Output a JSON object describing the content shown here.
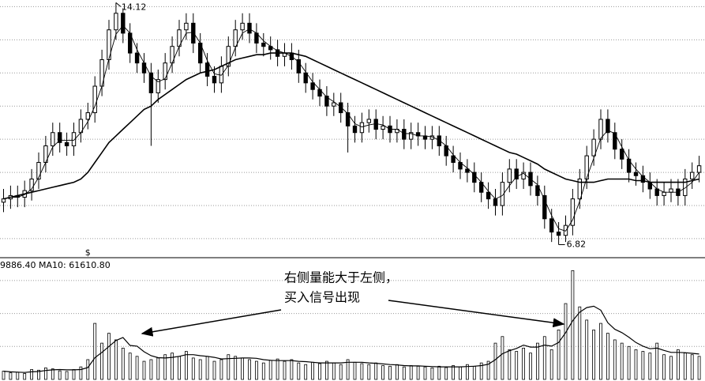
{
  "chart_data": [
    {
      "type": "candlestick",
      "color": "#000000",
      "up_fill": "#ffffff",
      "grid": true,
      "grid_color": "#9a9a9a",
      "ylim": [
        6.45,
        14.2
      ],
      "yticks": [
        7,
        8,
        9,
        10,
        11,
        12,
        13,
        14
      ],
      "high_label_index": 16,
      "low_label_index": 79,
      "event_marker": "$",
      "event_index": 12,
      "open": [
        8.1,
        8.2,
        8.3,
        8.25,
        8.45,
        8.8,
        9.3,
        9.8,
        10.2,
        9.9,
        9.8,
        10.2,
        10.6,
        10.8,
        11.6,
        12.4,
        13.3,
        13.8,
        13.2,
        12.6,
        12.3,
        12.0,
        11.4,
        11.8,
        12.3,
        12.8,
        13.3,
        13.5,
        12.9,
        12.3,
        11.9,
        11.7,
        12.2,
        12.8,
        13.3,
        13.5,
        13.2,
        12.9,
        12.8,
        12.7,
        12.5,
        12.6,
        12.4,
        12.0,
        11.7,
        11.5,
        11.3,
        11.0,
        11.1,
        10.8,
        10.4,
        10.2,
        10.5,
        10.6,
        10.3,
        10.4,
        10.2,
        10.3,
        10.0,
        10.2,
        10.1,
        10.0,
        10.1,
        9.8,
        9.5,
        9.3,
        9.1,
        9.0,
        8.7,
        8.4,
        8.2,
        8.0,
        8.7,
        9.1,
        8.8,
        9.0,
        8.6,
        8.3,
        7.6,
        7.2,
        7.1,
        7.4,
        8.2,
        8.8,
        9.5,
        10.0,
        10.6,
        10.2,
        9.7,
        9.4,
        9.0,
        8.9,
        8.7,
        8.5,
        8.3,
        8.4,
        8.5,
        8.3,
        8.8,
        9.0
      ],
      "high": [
        8.5,
        8.6,
        8.6,
        8.75,
        9.1,
        9.6,
        10.1,
        10.5,
        10.5,
        10.2,
        10.5,
        10.9,
        11.1,
        11.9,
        12.7,
        13.6,
        14.12,
        13.95,
        13.5,
        12.9,
        12.6,
        12.3,
        12.1,
        12.6,
        13.1,
        13.6,
        13.8,
        13.8,
        13.2,
        12.6,
        12.2,
        12.5,
        13.1,
        13.6,
        13.8,
        13.8,
        13.5,
        13.2,
        13.1,
        13.0,
        12.9,
        12.9,
        12.7,
        12.3,
        12.0,
        11.8,
        11.6,
        11.4,
        11.4,
        11.1,
        10.7,
        10.8,
        10.9,
        10.9,
        10.7,
        10.7,
        10.6,
        10.6,
        10.5,
        10.5,
        10.4,
        10.4,
        10.4,
        10.1,
        9.8,
        9.6,
        9.4,
        9.3,
        9.0,
        8.7,
        8.5,
        9.0,
        9.4,
        9.4,
        9.3,
        9.3,
        8.9,
        8.6,
        7.9,
        7.5,
        7.7,
        8.5,
        9.1,
        9.8,
        10.3,
        10.9,
        10.9,
        10.5,
        10.0,
        9.7,
        9.3,
        9.2,
        9.0,
        8.8,
        8.7,
        8.8,
        8.8,
        9.1,
        9.3,
        9.5
      ],
      "low": [
        7.8,
        7.9,
        7.95,
        7.95,
        8.15,
        8.5,
        9.0,
        9.5,
        9.6,
        9.5,
        9.5,
        9.9,
        10.3,
        10.5,
        11.3,
        12.1,
        13.0,
        12.9,
        12.3,
        12.0,
        11.7,
        9.8,
        11.1,
        11.5,
        12.0,
        12.5,
        13.0,
        12.6,
        12.0,
        11.6,
        11.4,
        11.4,
        11.9,
        12.5,
        13.0,
        12.9,
        12.6,
        12.5,
        12.4,
        12.2,
        12.2,
        12.1,
        11.7,
        11.4,
        11.2,
        11.0,
        10.7,
        10.7,
        10.5,
        9.6,
        9.9,
        9.9,
        10.2,
        10.0,
        10.0,
        9.9,
        9.9,
        9.7,
        9.7,
        9.8,
        9.7,
        9.7,
        9.5,
        9.2,
        9.0,
        8.8,
        8.7,
        8.4,
        8.1,
        7.9,
        7.7,
        7.7,
        8.4,
        8.5,
        8.5,
        8.3,
        8.0,
        7.3,
        6.9,
        6.82,
        6.9,
        7.1,
        7.9,
        8.5,
        9.2,
        9.7,
        9.9,
        9.4,
        9.1,
        8.7,
        8.6,
        8.4,
        8.2,
        8.0,
        8.0,
        8.1,
        8.0,
        8.0,
        8.5,
        8.7
      ],
      "close": [
        8.2,
        8.3,
        8.25,
        8.45,
        8.8,
        9.3,
        9.8,
        10.2,
        9.9,
        9.8,
        10.2,
        10.6,
        10.8,
        11.6,
        12.4,
        13.3,
        13.8,
        13.2,
        12.6,
        12.3,
        12.0,
        11.4,
        11.8,
        12.3,
        12.8,
        13.3,
        13.5,
        12.9,
        12.3,
        11.9,
        11.7,
        12.2,
        12.8,
        13.3,
        13.5,
        13.2,
        12.9,
        12.8,
        12.7,
        12.5,
        12.6,
        12.4,
        12.0,
        11.7,
        11.5,
        11.3,
        11.0,
        11.1,
        10.8,
        10.4,
        10.2,
        10.5,
        10.6,
        10.3,
        10.4,
        10.2,
        10.3,
        10.0,
        10.2,
        10.1,
        10.0,
        10.1,
        9.8,
        9.5,
        9.3,
        9.1,
        9.0,
        8.7,
        8.4,
        8.2,
        8.0,
        8.7,
        9.1,
        8.8,
        9.0,
        8.6,
        8.3,
        7.6,
        7.2,
        7.1,
        7.4,
        8.2,
        8.8,
        9.5,
        10.0,
        10.6,
        10.2,
        9.7,
        9.4,
        9.0,
        8.9,
        8.7,
        8.5,
        8.3,
        8.4,
        8.5,
        8.3,
        8.8,
        9.0,
        9.2
      ],
      "ma_short": {
        "color": "#000000",
        "values": [
          8.2,
          8.25,
          8.25,
          8.33,
          8.5,
          8.85,
          9.3,
          9.77,
          9.97,
          9.97,
          9.97,
          10.2,
          10.53,
          11.0,
          11.6,
          12.43,
          13.17,
          13.43,
          13.2,
          12.7,
          12.3,
          11.9,
          11.73,
          11.83,
          12.3,
          12.8,
          13.2,
          13.23,
          12.9,
          12.37,
          11.97,
          11.93,
          12.23,
          12.77,
          13.2,
          13.33,
          13.2,
          12.97,
          12.8,
          12.67,
          12.6,
          12.5,
          12.33,
          12.03,
          11.73,
          11.5,
          11.27,
          11.13,
          10.97,
          10.77,
          10.47,
          10.37,
          10.43,
          10.47,
          10.43,
          10.3,
          10.3,
          10.17,
          10.17,
          10.1,
          10.1,
          10.07,
          9.97,
          9.8,
          9.53,
          9.3,
          9.13,
          8.93,
          8.7,
          8.43,
          8.2,
          8.3,
          8.6,
          8.87,
          8.97,
          8.8,
          8.63,
          8.17,
          7.7,
          7.3,
          7.23,
          7.57,
          8.13,
          8.83,
          9.43,
          10.03,
          10.27,
          10.17,
          9.77,
          9.37,
          9.1,
          8.87,
          8.7,
          8.5,
          8.4,
          8.4,
          8.4,
          8.53,
          8.7,
          9.0
        ]
      },
      "ma_long": {
        "color": "#000000",
        "values": [
          8.2,
          8.25,
          8.3,
          8.35,
          8.4,
          8.45,
          8.5,
          8.55,
          8.6,
          8.65,
          8.7,
          8.8,
          9.0,
          9.3,
          9.6,
          9.9,
          10.1,
          10.3,
          10.5,
          10.7,
          10.9,
          11.0,
          11.2,
          11.35,
          11.5,
          11.65,
          11.8,
          11.9,
          12.0,
          12.05,
          12.1,
          12.2,
          12.3,
          12.4,
          12.45,
          12.5,
          12.55,
          12.55,
          12.6,
          12.6,
          12.6,
          12.6,
          12.55,
          12.5,
          12.4,
          12.3,
          12.2,
          12.1,
          12.0,
          11.9,
          11.8,
          11.7,
          11.6,
          11.5,
          11.4,
          11.3,
          11.2,
          11.1,
          11.0,
          10.9,
          10.8,
          10.7,
          10.6,
          10.5,
          10.4,
          10.3,
          10.2,
          10.1,
          10.0,
          9.9,
          9.8,
          9.7,
          9.6,
          9.55,
          9.45,
          9.35,
          9.25,
          9.1,
          9.0,
          8.9,
          8.8,
          8.75,
          8.7,
          8.7,
          8.7,
          8.75,
          8.8,
          8.8,
          8.8,
          8.8,
          8.75,
          8.75,
          8.7,
          8.7,
          8.7,
          8.7,
          8.7,
          8.7,
          8.75,
          8.8
        ]
      }
    },
    {
      "type": "bar",
      "label": "9886.40 MA10: 61610.80",
      "color": "#000000",
      "grid": true,
      "ylim": [
        0,
        350000
      ],
      "yticks": [
        100000,
        200000,
        300000
      ],
      "annotation": [
        "右侧量能大于左侧，",
        "买入信号出现"
      ],
      "values": [
        25000,
        20000,
        22000,
        18000,
        30000,
        28000,
        35000,
        32000,
        26000,
        24000,
        30000,
        38000,
        60000,
        170000,
        110000,
        140000,
        120000,
        95000,
        80000,
        70000,
        55000,
        60000,
        65000,
        75000,
        80000,
        70000,
        85000,
        65000,
        60000,
        70000,
        55000,
        60000,
        75000,
        70000,
        65000,
        60000,
        55000,
        50000,
        58000,
        62000,
        55000,
        60000,
        50000,
        45000,
        52000,
        48000,
        55000,
        50000,
        45000,
        60000,
        52000,
        48000,
        45000,
        50000,
        42000,
        40000,
        45000,
        38000,
        42000,
        40000,
        38000,
        35000,
        40000,
        36000,
        42000,
        38000,
        45000,
        40000,
        50000,
        55000,
        110000,
        130000,
        90000,
        85000,
        95000,
        80000,
        110000,
        130000,
        90000,
        150000,
        230000,
        330000,
        220000,
        180000,
        150000,
        170000,
        140000,
        120000,
        110000,
        100000,
        90000,
        85000,
        80000,
        110000,
        75000,
        70000,
        90000,
        80000,
        75000,
        70000
      ],
      "ma": {
        "color": "#000000",
        "values": [
          25000,
          23000,
          22000,
          21000,
          23000,
          24000,
          27000,
          29000,
          30000,
          29000,
          29000,
          30000,
          36000,
          66000,
          82000,
          100000,
          118000,
          127000,
          103000,
          101000,
          84000,
          72000,
          66000,
          65000,
          67000,
          70000,
          75000,
          75000,
          72000,
          70000,
          67000,
          62000,
          63000,
          64000,
          65000,
          65000,
          64000,
          60000,
          58000,
          57000,
          57000,
          57000,
          55000,
          54000,
          52000,
          50000,
          50000,
          50000,
          50000,
          52000,
          52000,
          52000,
          50000,
          49000,
          47000,
          45000,
          44000,
          42000,
          41000,
          41000,
          40000,
          39000,
          38000,
          38000,
          38000,
          38000,
          39000,
          40000,
          42000,
          46000,
          60000,
          78000,
          87000,
          94000,
          104000,
          98000,
          98000,
          104000,
          101000,
          112000,
          142000,
          178000,
          204000,
          218000,
          222000,
          210000,
          172000,
          152000,
          142000,
          128000,
          112000,
          101000,
          93000,
          95000,
          88000,
          82000,
          82000,
          81000,
          79000,
          77000
        ]
      }
    }
  ]
}
